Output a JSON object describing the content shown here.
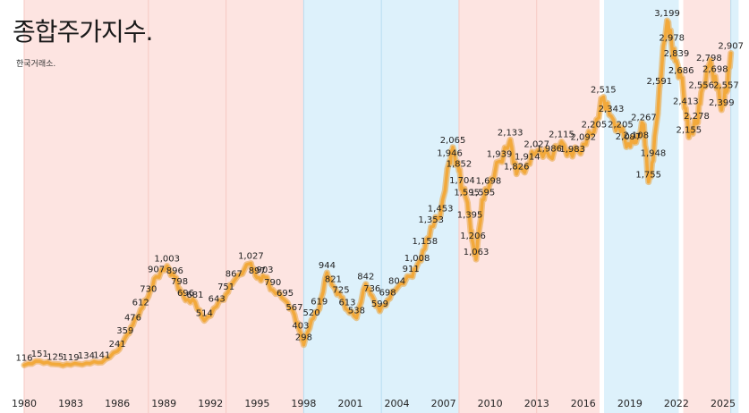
{
  "chart_data": {
    "type": "line",
    "title": "종합주가지수.",
    "subtitle": "한국거래소.",
    "xlabel": "",
    "ylabel": "",
    "x_ticks": [
      "1980",
      "1983",
      "1986",
      "1989",
      "1992",
      "1995",
      "1998",
      "2001",
      "2004",
      "2007",
      "2010",
      "2013",
      "2016",
      "2019",
      "2022",
      "2025"
    ],
    "xlim": [
      1980,
      2026
    ],
    "ylim": [
      0,
      3300
    ],
    "grid": false,
    "legend": "none",
    "colors": {
      "line": "#F2A93B",
      "red_band": "#FDE4E1",
      "blue_band": "#DDF1FB",
      "band_edge_red": "#F6C9C3",
      "band_edge_blue": "#B8DDF0"
    },
    "background_bands": [
      {
        "from": 1980,
        "to": 1988,
        "color": "red"
      },
      {
        "from": 1988,
        "to": 1993,
        "color": "red"
      },
      {
        "from": 1993,
        "to": 1998,
        "color": "red"
      },
      {
        "from": 1998,
        "to": 2003,
        "color": "blue"
      },
      {
        "from": 2003,
        "to": 2008,
        "color": "blue"
      },
      {
        "from": 2008,
        "to": 2013,
        "color": "red"
      },
      {
        "from": 2013,
        "to": 2017.3,
        "color": "red"
      },
      {
        "from": 2017.3,
        "to": 2022.3,
        "color": "blue"
      },
      {
        "from": 2022.3,
        "to": 2025.5,
        "color": "red"
      },
      {
        "from": 2025.5,
        "to": 2026,
        "color": "blue"
      }
    ],
    "series": [
      {
        "values": [
          [
            1980.0,
            116
          ],
          [
            1981.0,
            151
          ],
          [
            1982.0,
            125
          ],
          [
            1983.0,
            119
          ],
          [
            1984.0,
            134
          ],
          [
            1985.0,
            141
          ],
          [
            1986.0,
            241
          ],
          [
            1986.5,
            359
          ],
          [
            1987.0,
            476
          ],
          [
            1987.5,
            612
          ],
          [
            1988.0,
            730
          ],
          [
            1988.5,
            907
          ],
          [
            1989.2,
            1003
          ],
          [
            1989.7,
            896
          ],
          [
            1990.0,
            798
          ],
          [
            1990.4,
            696
          ],
          [
            1991.0,
            681
          ],
          [
            1991.6,
            514
          ],
          [
            1992.4,
            643
          ],
          [
            1993.0,
            751
          ],
          [
            1993.5,
            867
          ],
          [
            1994.6,
            1027
          ],
          [
            1995.0,
            897
          ],
          [
            1995.5,
            903
          ],
          [
            1996.0,
            790
          ],
          [
            1996.8,
            695
          ],
          [
            1997.4,
            567
          ],
          [
            1997.8,
            403
          ],
          [
            1998.0,
            298
          ],
          [
            1998.5,
            520
          ],
          [
            1999.0,
            619
          ],
          [
            1999.5,
            944
          ],
          [
            1999.9,
            821
          ],
          [
            2000.4,
            725
          ],
          [
            2000.8,
            613
          ],
          [
            2001.4,
            538
          ],
          [
            2002.0,
            842
          ],
          [
            2002.4,
            736
          ],
          [
            2002.9,
            599
          ],
          [
            2003.4,
            698
          ],
          [
            2004.0,
            804
          ],
          [
            2004.9,
            911
          ],
          [
            2005.3,
            1008
          ],
          [
            2005.8,
            1158
          ],
          [
            2006.2,
            1353
          ],
          [
            2006.8,
            1453
          ],
          [
            2007.4,
            1946
          ],
          [
            2007.6,
            2065
          ],
          [
            2008.0,
            1852
          ],
          [
            2008.2,
            1704
          ],
          [
            2008.5,
            1595
          ],
          [
            2008.7,
            1395
          ],
          [
            2008.9,
            1206
          ],
          [
            2009.1,
            1063
          ],
          [
            2009.5,
            1595
          ],
          [
            2009.9,
            1698
          ],
          [
            2010.6,
            1939
          ],
          [
            2011.3,
            2133
          ],
          [
            2011.7,
            1826
          ],
          [
            2012.4,
            1914
          ],
          [
            2013.0,
            2027
          ],
          [
            2013.8,
            1986
          ],
          [
            2014.6,
            2115
          ],
          [
            2015.3,
            1983
          ],
          [
            2016.0,
            2092
          ],
          [
            2016.7,
            2205
          ],
          [
            2017.3,
            2515
          ],
          [
            2017.8,
            2343
          ],
          [
            2018.4,
            2205
          ],
          [
            2018.9,
            2097
          ],
          [
            2019.4,
            2108
          ],
          [
            2019.9,
            2267
          ],
          [
            2020.2,
            1755
          ],
          [
            2020.5,
            1948
          ],
          [
            2020.9,
            2591
          ],
          [
            2021.4,
            3199
          ],
          [
            2021.7,
            2978
          ],
          [
            2022.0,
            2839
          ],
          [
            2022.3,
            2686
          ],
          [
            2022.6,
            2413
          ],
          [
            2022.8,
            2155
          ],
          [
            2023.3,
            2278
          ],
          [
            2023.6,
            2556
          ],
          [
            2024.1,
            2798
          ],
          [
            2024.5,
            2698
          ],
          [
            2024.9,
            2399
          ],
          [
            2025.2,
            2557
          ],
          [
            2025.5,
            2907
          ]
        ]
      }
    ],
    "data_labels": [
      {
        "x": 1980.0,
        "y": 116,
        "text": "116"
      },
      {
        "x": 1981.0,
        "y": 151,
        "text": "151"
      },
      {
        "x": 1982.0,
        "y": 125,
        "text": "125"
      },
      {
        "x": 1983.0,
        "y": 119,
        "text": "119"
      },
      {
        "x": 1984.0,
        "y": 134,
        "text": "134"
      },
      {
        "x": 1985.0,
        "y": 141,
        "text": "141"
      },
      {
        "x": 1986.0,
        "y": 241,
        "text": "241"
      },
      {
        "x": 1986.5,
        "y": 359,
        "text": "359"
      },
      {
        "x": 1987.0,
        "y": 476,
        "text": "476"
      },
      {
        "x": 1987.5,
        "y": 612,
        "text": "612"
      },
      {
        "x": 1988.0,
        "y": 730,
        "text": "730"
      },
      {
        "x": 1988.5,
        "y": 907,
        "text": "907"
      },
      {
        "x": 1989.2,
        "y": 1003,
        "text": "1,003"
      },
      {
        "x": 1989.7,
        "y": 896,
        "text": "896"
      },
      {
        "x": 1990.0,
        "y": 798,
        "text": "798"
      },
      {
        "x": 1990.4,
        "y": 696,
        "text": "696"
      },
      {
        "x": 1991.0,
        "y": 681,
        "text": "681"
      },
      {
        "x": 1991.6,
        "y": 514,
        "text": "514"
      },
      {
        "x": 1992.4,
        "y": 643,
        "text": "643"
      },
      {
        "x": 1993.0,
        "y": 751,
        "text": "751"
      },
      {
        "x": 1993.5,
        "y": 867,
        "text": "867"
      },
      {
        "x": 1994.6,
        "y": 1027,
        "text": "1,027"
      },
      {
        "x": 1995.0,
        "y": 897,
        "text": "897"
      },
      {
        "x": 1995.5,
        "y": 903,
        "text": "903"
      },
      {
        "x": 1996.0,
        "y": 790,
        "text": "790"
      },
      {
        "x": 1996.8,
        "y": 695,
        "text": "695"
      },
      {
        "x": 1997.4,
        "y": 567,
        "text": "567"
      },
      {
        "x": 1997.8,
        "y": 403,
        "text": "403"
      },
      {
        "x": 1998.0,
        "y": 298,
        "text": "298"
      },
      {
        "x": 1998.5,
        "y": 520,
        "text": "520"
      },
      {
        "x": 1999.0,
        "y": 619,
        "text": "619"
      },
      {
        "x": 1999.5,
        "y": 944,
        "text": "944"
      },
      {
        "x": 1999.9,
        "y": 821,
        "text": "821"
      },
      {
        "x": 2000.4,
        "y": 725,
        "text": "725"
      },
      {
        "x": 2000.8,
        "y": 613,
        "text": "613"
      },
      {
        "x": 2001.4,
        "y": 538,
        "text": "538"
      },
      {
        "x": 2002.0,
        "y": 842,
        "text": "842"
      },
      {
        "x": 2002.4,
        "y": 736,
        "text": "736"
      },
      {
        "x": 2002.9,
        "y": 599,
        "text": "599"
      },
      {
        "x": 2003.4,
        "y": 698,
        "text": "698"
      },
      {
        "x": 2004.0,
        "y": 804,
        "text": "804"
      },
      {
        "x": 2004.9,
        "y": 911,
        "text": "911"
      },
      {
        "x": 2005.3,
        "y": 1008,
        "text": "1,008"
      },
      {
        "x": 2005.8,
        "y": 1158,
        "text": "1,158"
      },
      {
        "x": 2006.2,
        "y": 1353,
        "text": "1,353"
      },
      {
        "x": 2006.8,
        "y": 1453,
        "text": "1,453"
      },
      {
        "x": 2007.4,
        "y": 1946,
        "text": "1,946"
      },
      {
        "x": 2007.6,
        "y": 2065,
        "text": "2,065"
      },
      {
        "x": 2008.0,
        "y": 1852,
        "text": "1,852"
      },
      {
        "x": 2008.2,
        "y": 1704,
        "text": "1,704"
      },
      {
        "x": 2008.5,
        "y": 1595,
        "text": "1,595"
      },
      {
        "x": 2008.7,
        "y": 1395,
        "text": "1,395"
      },
      {
        "x": 2008.9,
        "y": 1206,
        "text": "1,206"
      },
      {
        "x": 2009.1,
        "y": 1063,
        "text": "1,063"
      },
      {
        "x": 2009.5,
        "y": 1595,
        "text": "1,595"
      },
      {
        "x": 2009.9,
        "y": 1698,
        "text": "1,698"
      },
      {
        "x": 2010.6,
        "y": 1939,
        "text": "1,939"
      },
      {
        "x": 2011.3,
        "y": 2133,
        "text": "2,133"
      },
      {
        "x": 2011.7,
        "y": 1826,
        "text": "1,826"
      },
      {
        "x": 2012.4,
        "y": 1914,
        "text": "1,914"
      },
      {
        "x": 2013.0,
        "y": 2027,
        "text": "2,027"
      },
      {
        "x": 2013.8,
        "y": 1986,
        "text": "1,986"
      },
      {
        "x": 2014.6,
        "y": 2115,
        "text": "2,115"
      },
      {
        "x": 2015.3,
        "y": 1983,
        "text": "1,983"
      },
      {
        "x": 2016.0,
        "y": 2092,
        "text": "2,092"
      },
      {
        "x": 2016.7,
        "y": 2205,
        "text": "2,205"
      },
      {
        "x": 2017.3,
        "y": 2515,
        "text": "2,515"
      },
      {
        "x": 2017.8,
        "y": 2343,
        "text": "2,343"
      },
      {
        "x": 2018.4,
        "y": 2205,
        "text": "2,205"
      },
      {
        "x": 2018.9,
        "y": 2097,
        "text": "2,097"
      },
      {
        "x": 2019.4,
        "y": 2108,
        "text": "2,108"
      },
      {
        "x": 2019.9,
        "y": 2267,
        "text": "2,267"
      },
      {
        "x": 2020.2,
        "y": 1755,
        "text": "1,755"
      },
      {
        "x": 2020.5,
        "y": 1948,
        "text": "1,948"
      },
      {
        "x": 2020.9,
        "y": 2591,
        "text": "2,591"
      },
      {
        "x": 2021.4,
        "y": 3199,
        "text": "3,199"
      },
      {
        "x": 2021.7,
        "y": 2978,
        "text": "2,978"
      },
      {
        "x": 2022.0,
        "y": 2839,
        "text": "2,839"
      },
      {
        "x": 2022.3,
        "y": 2686,
        "text": "2,686"
      },
      {
        "x": 2022.6,
        "y": 2413,
        "text": "2,413"
      },
      {
        "x": 2022.8,
        "y": 2155,
        "text": "2,155"
      },
      {
        "x": 2023.3,
        "y": 2278,
        "text": "2,278"
      },
      {
        "x": 2023.6,
        "y": 2556,
        "text": "2,556"
      },
      {
        "x": 2024.1,
        "y": 2798,
        "text": "2,798"
      },
      {
        "x": 2024.5,
        "y": 2698,
        "text": "2,698"
      },
      {
        "x": 2024.9,
        "y": 2399,
        "text": "2,399"
      },
      {
        "x": 2025.2,
        "y": 2557,
        "text": "2,557"
      },
      {
        "x": 2025.5,
        "y": 2907,
        "text": "2,907"
      }
    ]
  }
}
